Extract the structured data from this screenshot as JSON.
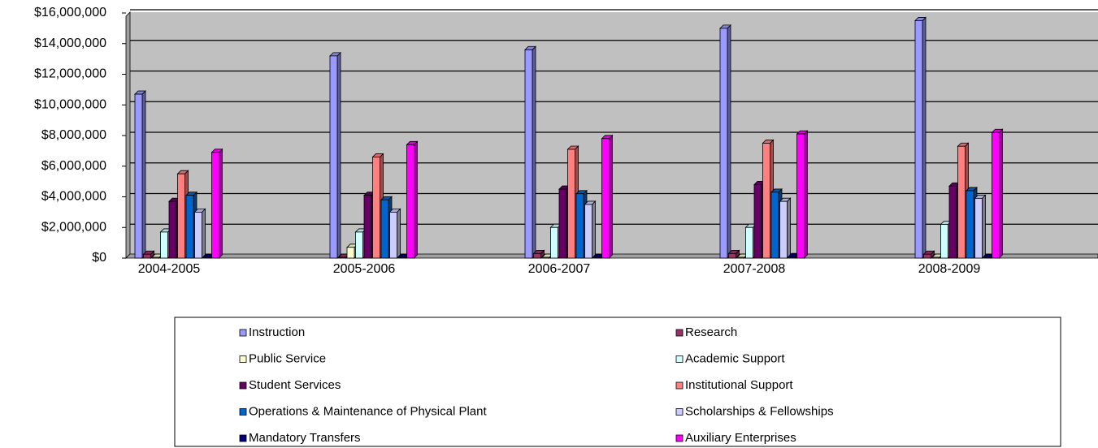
{
  "chart_data": {
    "type": "bar",
    "categories": [
      "2004-2005",
      "2005-2006",
      "2006-2007",
      "2007-2008",
      "2008-2009"
    ],
    "series": [
      {
        "name": "Instruction",
        "color": "#9999ff",
        "values": [
          10700000,
          13200000,
          13600000,
          15000000,
          15500000
        ]
      },
      {
        "name": "Research",
        "color": "#993366",
        "values": [
          250000,
          50000,
          300000,
          300000,
          250000
        ]
      },
      {
        "name": "Public Service",
        "color": "#ffffcc",
        "values": [
          50000,
          700000,
          50000,
          50000,
          50000
        ]
      },
      {
        "name": "Academic Support",
        "color": "#ccffff",
        "values": [
          1700000,
          1700000,
          2000000,
          2000000,
          2200000
        ]
      },
      {
        "name": "Student Services",
        "color": "#660066",
        "values": [
          3700000,
          4100000,
          4500000,
          4800000,
          4700000
        ]
      },
      {
        "name": "Institutional Support",
        "color": "#ff8080",
        "values": [
          5500000,
          6600000,
          7100000,
          7500000,
          7300000
        ]
      },
      {
        "name": "Operations & Maintenance of Physical Plant",
        "color": "#0066cc",
        "values": [
          4100000,
          3800000,
          4200000,
          4300000,
          4400000
        ]
      },
      {
        "name": "Scholarships & Fellowships",
        "color": "#ccccff",
        "values": [
          3000000,
          3000000,
          3500000,
          3700000,
          3900000
        ]
      },
      {
        "name": "Mandatory Transfers",
        "color": "#000080",
        "values": [
          50000,
          50000,
          50000,
          100000,
          50000
        ]
      },
      {
        "name": "Auxiliary Enterprises",
        "color": "#ff00ff",
        "values": [
          6900000,
          7400000,
          7800000,
          8100000,
          8200000
        ]
      }
    ],
    "ylim": [
      0,
      16000000
    ],
    "yticks": [
      {
        "value": 0,
        "label": "$0"
      },
      {
        "value": 2000000,
        "label": "$2,000,000"
      },
      {
        "value": 4000000,
        "label": "$4,000,000"
      },
      {
        "value": 6000000,
        "label": "$6,000,000"
      },
      {
        "value": 8000000,
        "label": "$8,000,000"
      },
      {
        "value": 10000000,
        "label": "$10,000,000"
      },
      {
        "value": 12000000,
        "label": "$12,000,000"
      },
      {
        "value": 14000000,
        "label": "$14,000,000"
      },
      {
        "value": 16000000,
        "label": "$16,000,000"
      }
    ],
    "grid": true,
    "legend": "bottom"
  }
}
